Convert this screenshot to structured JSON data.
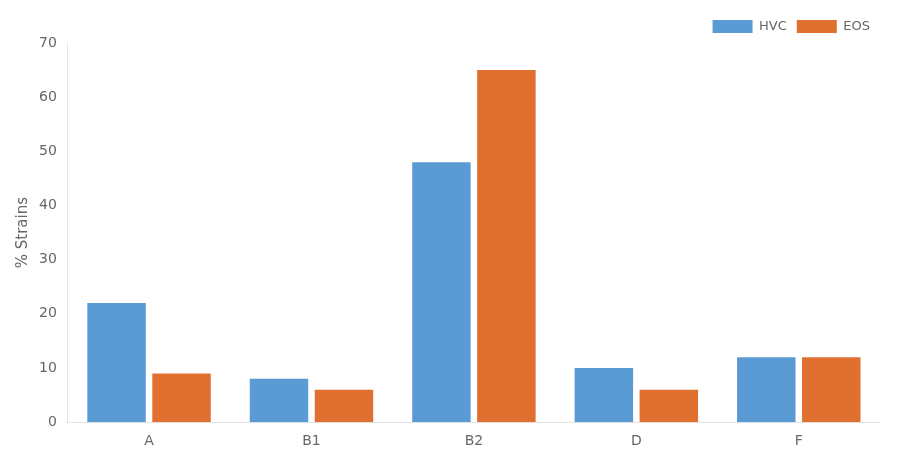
{
  "chart_data": {
    "type": "bar",
    "categories": [
      "A",
      "B1",
      "B2",
      "D",
      "F"
    ],
    "series": [
      {
        "name": "HVC",
        "color": "#5B9BD5",
        "values": [
          22,
          8,
          48,
          10,
          12
        ]
      },
      {
        "name": "EOS",
        "color": "#E07030",
        "values": [
          9,
          6,
          65,
          6,
          12
        ]
      }
    ],
    "ylabel": "% Strains",
    "ylim": [
      0,
      70
    ],
    "yticks": [
      0,
      10,
      20,
      30,
      40,
      50,
      60,
      70
    ],
    "grid": false,
    "legend": "upper right"
  }
}
